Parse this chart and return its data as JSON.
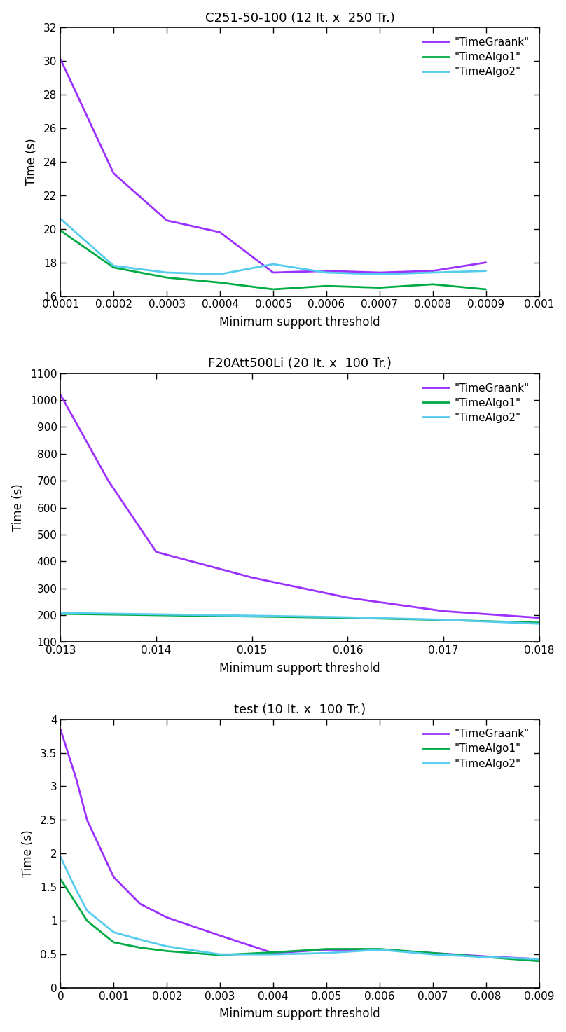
{
  "plots": [
    {
      "title": "C251-50-100 (12 It. x  250 Tr.)",
      "xlabel": "Minimum support threshold",
      "ylabel": "Time (s)",
      "ylim": [
        16,
        32
      ],
      "yticks": [
        16,
        18,
        20,
        22,
        24,
        26,
        28,
        30,
        32
      ],
      "xlim": [
        0.0001,
        0.001
      ],
      "xticks": [
        0.0001,
        0.0002,
        0.0003,
        0.0004,
        0.0005,
        0.0006,
        0.0007,
        0.0008,
        0.0009,
        0.001
      ],
      "xticklabels": [
        "0.0001",
        "0.0002",
        "0.0003",
        "0.0004",
        "0.0005",
        "0.0006",
        "0.0007",
        "0.0008",
        "0.0009",
        "0.001"
      ],
      "series": [
        {
          "label": "\"TimeGraank\"",
          "color": "#9b30ff",
          "x": [
            0.0001,
            0.0002,
            0.0003,
            0.0004,
            0.0005,
            0.0006,
            0.0007,
            0.0008,
            0.0009
          ],
          "y": [
            30.1,
            23.3,
            20.5,
            19.8,
            17.4,
            17.5,
            17.4,
            17.5,
            18.0
          ]
        },
        {
          "label": "\"TimeAlgo1\"",
          "color": "#00aa44",
          "x": [
            0.0001,
            0.0002,
            0.0003,
            0.0004,
            0.0005,
            0.0006,
            0.0007,
            0.0008,
            0.0009
          ],
          "y": [
            19.9,
            17.7,
            17.1,
            16.8,
            16.4,
            16.6,
            16.5,
            16.7,
            16.4
          ]
        },
        {
          "label": "\"TimeAlgo2\"",
          "color": "#55ccee",
          "x": [
            0.0001,
            0.0002,
            0.0003,
            0.0004,
            0.0005,
            0.0006,
            0.0007,
            0.0008,
            0.0009
          ],
          "y": [
            20.6,
            17.8,
            17.4,
            17.3,
            17.9,
            17.4,
            17.3,
            17.4,
            17.5
          ]
        }
      ]
    },
    {
      "title": "F20Att500Li (20 It. x  100 Tr.)",
      "xlabel": "Minimum support threshold",
      "ylabel": "Time (s)",
      "ylim": [
        100,
        1100
      ],
      "yticks": [
        100,
        200,
        300,
        400,
        500,
        600,
        700,
        800,
        900,
        1000,
        1100
      ],
      "xlim": [
        0.013,
        0.018
      ],
      "xticks": [
        0.013,
        0.014,
        0.015,
        0.016,
        0.017,
        0.018
      ],
      "xticklabels": [
        "0.013",
        "0.014",
        "0.015",
        "0.016",
        "0.017",
        "0.018"
      ],
      "series": [
        {
          "label": "\"TimeGraank\"",
          "color": "#9b30ff",
          "x": [
            0.013,
            0.0135,
            0.014,
            0.015,
            0.016,
            0.017,
            0.018
          ],
          "y": [
            1020,
            700,
            435,
            340,
            265,
            215,
            190
          ]
        },
        {
          "label": "\"TimeAlgo1\"",
          "color": "#00aa44",
          "x": [
            0.013,
            0.014,
            0.015,
            0.016,
            0.017,
            0.018
          ],
          "y": [
            205,
            200,
            195,
            190,
            182,
            172
          ]
        },
        {
          "label": "\"TimeAlgo2\"",
          "color": "#55ccee",
          "x": [
            0.013,
            0.014,
            0.015,
            0.016,
            0.017,
            0.018
          ],
          "y": [
            208,
            203,
            198,
            192,
            183,
            168
          ]
        }
      ]
    },
    {
      "title": "test (10 It. x  100 Tr.)",
      "xlabel": "Minimum support threshold",
      "ylabel": "Time (s)",
      "ylim": [
        0,
        4
      ],
      "yticks": [
        0,
        0.5,
        1.0,
        1.5,
        2.0,
        2.5,
        3.0,
        3.5,
        4.0
      ],
      "yticklabels": [
        "0",
        "0.5",
        "1",
        "1.5",
        "2",
        "2.5",
        "3",
        "3.5",
        "4"
      ],
      "xlim": [
        0.0,
        0.009
      ],
      "xticks": [
        0.0,
        0.001,
        0.002,
        0.003,
        0.004,
        0.005,
        0.006,
        0.007,
        0.008,
        0.009
      ],
      "xticklabels": [
        "0",
        "0.001",
        "0.002",
        "0.003",
        "0.004",
        "0.005",
        "0.006",
        "0.007",
        "0.008",
        "0.009"
      ],
      "series": [
        {
          "label": "\"TimeGraank\"",
          "color": "#9b30ff",
          "x": [
            0.0,
            0.0003,
            0.0005,
            0.001,
            0.0015,
            0.002,
            0.003,
            0.004,
            0.005,
            0.006,
            0.007,
            0.008,
            0.009
          ],
          "y": [
            3.85,
            3.1,
            2.5,
            1.65,
            1.25,
            1.05,
            0.78,
            0.52,
            0.57,
            0.57,
            0.52,
            0.47,
            0.43
          ]
        },
        {
          "label": "\"TimeAlgo1\"",
          "color": "#00aa44",
          "x": [
            0.0,
            0.0003,
            0.0005,
            0.001,
            0.0015,
            0.002,
            0.003,
            0.004,
            0.005,
            0.006,
            0.007,
            0.008,
            0.009
          ],
          "y": [
            1.62,
            1.25,
            1.0,
            0.68,
            0.6,
            0.55,
            0.49,
            0.53,
            0.58,
            0.58,
            0.52,
            0.46,
            0.4
          ]
        },
        {
          "label": "\"TimeAlgo2\"",
          "color": "#55ccee",
          "x": [
            0.0,
            0.0003,
            0.0005,
            0.001,
            0.0015,
            0.002,
            0.003,
            0.004,
            0.005,
            0.006,
            0.007,
            0.008,
            0.009
          ],
          "y": [
            1.95,
            1.45,
            1.15,
            0.83,
            0.72,
            0.62,
            0.5,
            0.5,
            0.52,
            0.57,
            0.5,
            0.46,
            0.43
          ]
        }
      ]
    }
  ],
  "line_width": 2.0,
  "legend_fontsize": 11,
  "title_fontsize": 13,
  "axis_label_fontsize": 12,
  "tick_fontsize": 11,
  "background_color": "#ffffff"
}
